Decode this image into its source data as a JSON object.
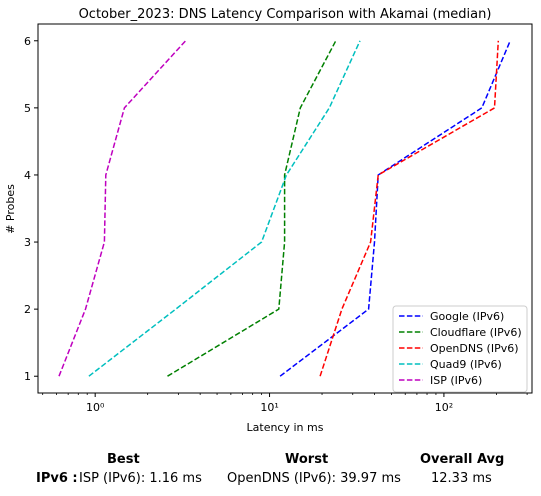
{
  "chart_data": {
    "type": "line",
    "title": "October_2023: DNS Latency Comparison with Akamai (median)",
    "xlabel": "Latency in ms",
    "ylabel": "# Probes",
    "xscale": "log",
    "xlim": [
      0.47,
      320
    ],
    "ylim": [
      0.75,
      6.25
    ],
    "xticks": [
      1,
      10,
      100
    ],
    "xtick_labels": [
      "10⁰",
      "10¹",
      "10²"
    ],
    "yticks": [
      1,
      2,
      3,
      4,
      5,
      6
    ],
    "ytick_labels": [
      "1",
      "2",
      "3",
      "4",
      "5",
      "6"
    ],
    "grid": false,
    "legend_position": "lower right",
    "series": [
      {
        "name": "Google (IPv6)",
        "color": "#0000ff",
        "x": [
          11.5,
          37,
          40,
          42,
          165,
          240
        ],
        "y": [
          1,
          2,
          3,
          4,
          5,
          6
        ]
      },
      {
        "name": "Cloudflare (IPv6)",
        "color": "#008000",
        "x": [
          2.6,
          11.3,
          12.2,
          12.2,
          15,
          24
        ],
        "y": [
          1,
          2,
          3,
          4,
          5,
          6
        ]
      },
      {
        "name": "OpenDNS (IPv6)",
        "color": "#ff0000",
        "x": [
          19.5,
          26,
          38,
          42,
          195,
          205
        ],
        "y": [
          1,
          2,
          3,
          4,
          5,
          6
        ]
      },
      {
        "name": "Quad9 (IPv6)",
        "color": "#00bfbf",
        "x": [
          0.92,
          2.9,
          9,
          12.5,
          22,
          33
        ],
        "y": [
          1,
          2,
          3,
          4,
          5,
          6
        ]
      },
      {
        "name": "ISP (IPv6)",
        "color": "#bf00bf",
        "x": [
          0.62,
          0.88,
          1.13,
          1.15,
          1.47,
          3.3
        ],
        "y": [
          1,
          2,
          3,
          4,
          5,
          6
        ]
      }
    ]
  },
  "summary": {
    "headers": {
      "best": "Best",
      "worst": "Worst",
      "avg": "Overall Avg"
    },
    "row_label": "IPv6 :",
    "best": "ISP (IPv6): 1.16 ms",
    "worst": "OpenDNS (IPv6): 39.97 ms",
    "avg": "12.33 ms"
  }
}
